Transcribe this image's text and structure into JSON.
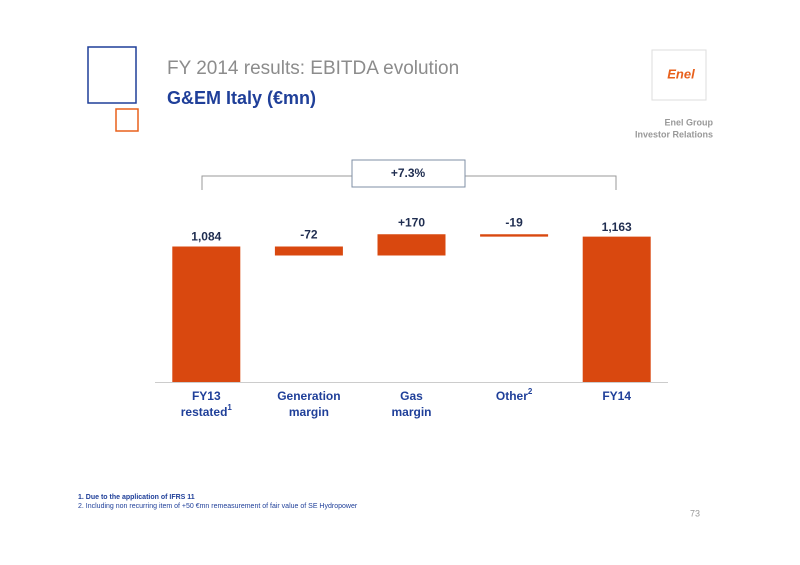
{
  "header": {
    "title": "FY 2014 results: EBITDA evolution",
    "subtitle": "G&EM Italy (€mn)"
  },
  "logo": "Enel",
  "brand": [
    "Enel Group",
    "Investor Relations"
  ],
  "chart_data": {
    "type": "waterfall",
    "categories": [
      [
        "FY13",
        "restated"
      ],
      [
        "Generation",
        "margin"
      ],
      [
        "Gas",
        "margin"
      ],
      [
        "Other"
      ],
      [
        "FY14"
      ]
    ],
    "category_notes": [
      "1",
      null,
      null,
      "2",
      null
    ],
    "values": [
      1084,
      -72,
      170,
      -19,
      1163
    ],
    "value_labels": [
      "1,084",
      "-72",
      "+170",
      "-19",
      "1,163"
    ],
    "color": "#d9480f",
    "ylim": [
      0,
      1600
    ],
    "annotation": "+7.3%"
  },
  "footnotes": [
    "1. Due to the application of IFRS 11",
    "2. Including non recurring item of +50 €mn remeasurement of fair value of SE Hydropower"
  ],
  "page_number": "73"
}
